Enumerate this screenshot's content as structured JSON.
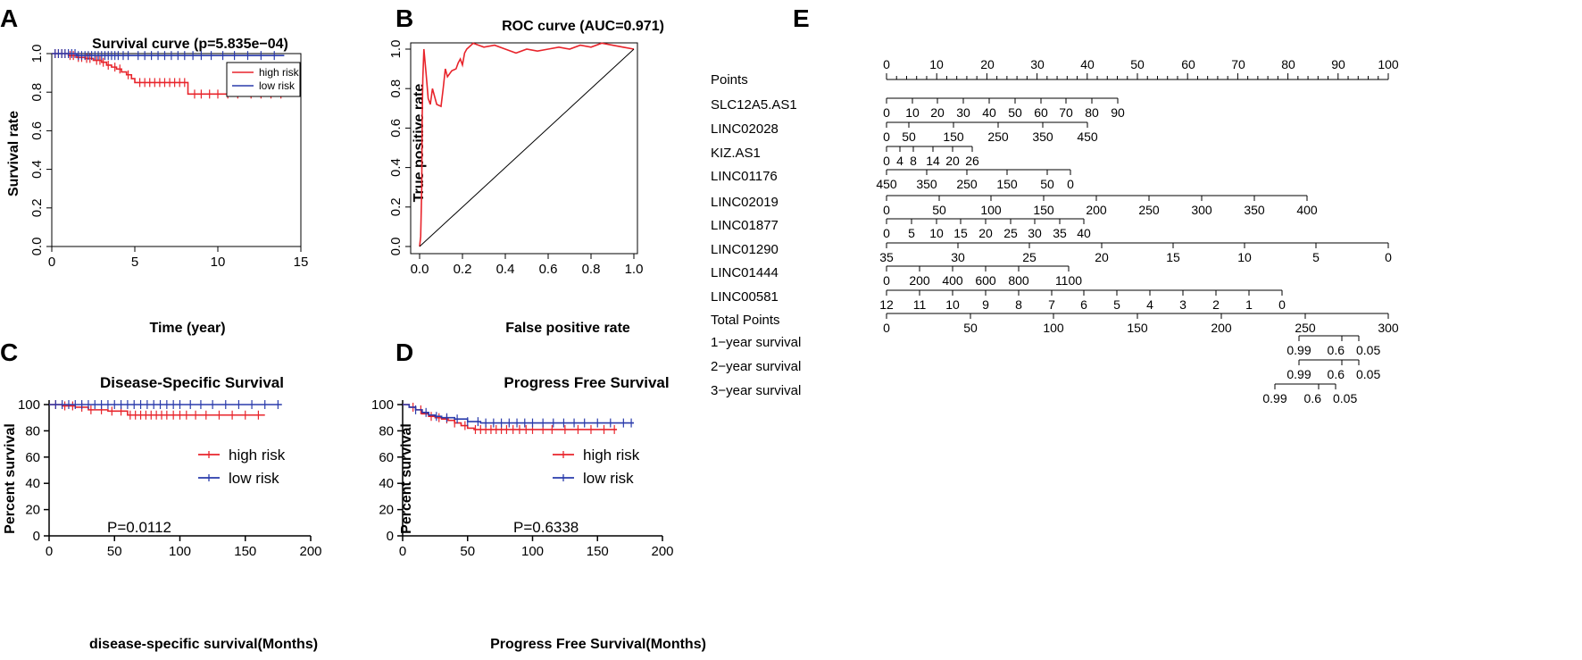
{
  "panels": {
    "A": {
      "letter": "A",
      "chart_data": {
        "type": "line",
        "title": "Survival curve (p=5.835e−04)",
        "xlabel": "Time (year)",
        "ylabel": "Survival rate",
        "xlim": [
          0,
          15
        ],
        "ylim": [
          0,
          1
        ],
        "xticks": [
          "0",
          "5",
          "10",
          "15"
        ],
        "yticks": [
          "0.0",
          "0.2",
          "0.4",
          "0.6",
          "0.8",
          "1.0"
        ],
        "legend_position": "top-right",
        "series": [
          {
            "name": "high risk",
            "color": "#e8242b",
            "steps": [
              [
                0,
                1.0
              ],
              [
                1.0,
                0.99
              ],
              [
                1.5,
                0.98
              ],
              [
                2.0,
                0.975
              ],
              [
                2.5,
                0.965
              ],
              [
                3.0,
                0.955
              ],
              [
                3.3,
                0.94
              ],
              [
                3.6,
                0.93
              ],
              [
                3.9,
                0.92
              ],
              [
                4.2,
                0.905
              ],
              [
                4.5,
                0.89
              ],
              [
                4.8,
                0.87
              ],
              [
                5.0,
                0.85
              ],
              [
                8.2,
                0.79
              ],
              [
                14.0,
                0.79
              ]
            ],
            "censor_times": [
              0.2,
              0.4,
              0.6,
              0.8,
              1.1,
              1.3,
              1.6,
              1.8,
              2.1,
              2.3,
              2.7,
              2.9,
              3.1,
              3.4,
              3.8,
              4.1,
              4.6,
              5.3,
              5.6,
              5.9,
              6.2,
              6.5,
              6.8,
              7.1,
              7.4,
              7.7,
              8.0,
              8.6,
              9.0,
              9.5,
              10.0,
              10.6,
              11.2,
              12.0,
              12.6,
              13.2,
              13.8
            ]
          },
          {
            "name": "low risk",
            "color": "#2a3bab",
            "steps": [
              [
                0,
                1.0
              ],
              [
                1.5,
                0.99
              ],
              [
                14.0,
                0.99
              ]
            ],
            "censor_times": [
              0.2,
              0.4,
              0.6,
              0.8,
              1.0,
              1.2,
              1.4,
              1.6,
              1.8,
              2.0,
              2.2,
              2.4,
              2.6,
              2.8,
              3.0,
              3.2,
              3.4,
              3.6,
              3.8,
              4.0,
              4.3,
              4.6,
              5.2,
              5.6,
              6.0,
              6.4,
              6.8,
              7.2,
              7.6,
              8.0,
              8.5,
              9.0,
              9.6,
              10.3,
              11.0,
              11.8,
              12.6,
              13.4
            ]
          }
        ]
      }
    },
    "B": {
      "letter": "B",
      "chart_data": {
        "type": "line",
        "title": "ROC curve (AUC=0.971)",
        "xlabel": "False positive rate",
        "ylabel": "True positive rate",
        "xlim": [
          0,
          1
        ],
        "ylim": [
          0,
          1
        ],
        "xticks": [
          "0.0",
          "0.2",
          "0.4",
          "0.6",
          "0.8",
          "1.0"
        ],
        "yticks": [
          "0.0",
          "0.2",
          "0.4",
          "0.6",
          "0.8",
          "1.0"
        ],
        "series": [
          {
            "name": "",
            "color": "#e8242b",
            "points": [
              [
                0,
                0
              ],
              [
                0.005,
                0.05
              ],
              [
                0.01,
                0.3
              ],
              [
                0.012,
                0.65
              ],
              [
                0.015,
                0.85
              ],
              [
                0.02,
                1.0
              ],
              [
                0.03,
                0.88
              ],
              [
                0.04,
                0.75
              ],
              [
                0.05,
                0.72
              ],
              [
                0.06,
                0.8
              ],
              [
                0.07,
                0.76
              ],
              [
                0.08,
                0.72
              ],
              [
                0.1,
                0.71
              ],
              [
                0.11,
                0.8
              ],
              [
                0.12,
                0.9
              ],
              [
                0.13,
                0.86
              ],
              [
                0.15,
                0.89
              ],
              [
                0.17,
                0.9
              ],
              [
                0.18,
                0.93
              ],
              [
                0.19,
                0.95
              ],
              [
                0.2,
                0.92
              ],
              [
                0.21,
                0.98
              ],
              [
                0.22,
                1.0
              ],
              [
                0.25,
                1.03
              ],
              [
                0.3,
                1.01
              ],
              [
                0.35,
                1.02
              ],
              [
                0.4,
                1.0
              ],
              [
                0.45,
                0.98
              ],
              [
                0.5,
                1.0
              ],
              [
                0.55,
                0.99
              ],
              [
                0.6,
                1.0
              ],
              [
                0.65,
                1.01
              ],
              [
                0.7,
                1.0
              ],
              [
                0.75,
                1.02
              ],
              [
                0.8,
                1.01
              ],
              [
                0.85,
                1.03
              ],
              [
                0.9,
                1.02
              ],
              [
                0.95,
                1.01
              ],
              [
                1.0,
                1.0
              ]
            ]
          },
          {
            "name": "",
            "color": "#000000",
            "points": [
              [
                0,
                0
              ],
              [
                1,
                1
              ]
            ]
          }
        ]
      }
    },
    "C": {
      "letter": "C",
      "pvalue": "P=0.0112",
      "chart_data": {
        "type": "line",
        "title": "Disease-Specific Survival",
        "xlabel": "disease-specific survival(Months)",
        "ylabel": "Percent survival",
        "xlim": [
          0,
          200
        ],
        "ylim": [
          0,
          100
        ],
        "xticks": [
          "0",
          "50",
          "100",
          "150",
          "200"
        ],
        "yticks": [
          "0",
          "20",
          "40",
          "60",
          "80",
          "100"
        ],
        "legend_position": "center-right",
        "series": [
          {
            "name": "high risk",
            "color": "#e8242b",
            "steps": [
              [
                0,
                100
              ],
              [
                10,
                99
              ],
              [
                20,
                98
              ],
              [
                30,
                96
              ],
              [
                45,
                95
              ],
              [
                60,
                92
              ],
              [
                165,
                92
              ]
            ],
            "censor_times": [
              5,
              12,
              18,
              25,
              32,
              40,
              48,
              55,
              62,
              66,
              70,
              74,
              78,
              82,
              86,
              90,
              95,
              100,
              105,
              112,
              120,
              130,
              140,
              150,
              160
            ]
          },
          {
            "name": "low risk",
            "color": "#2a3bab",
            "steps": [
              [
                0,
                100
              ],
              [
                178,
                100
              ]
            ],
            "censor_times": [
              5,
              10,
              15,
              20,
              25,
              30,
              35,
              40,
              45,
              50,
              55,
              60,
              65,
              70,
              75,
              80,
              85,
              90,
              95,
              100,
              108,
              116,
              125,
              135,
              145,
              155,
              165,
              175
            ]
          }
        ]
      }
    },
    "D": {
      "letter": "D",
      "pvalue": "P=0.6338",
      "chart_data": {
        "type": "line",
        "title": "Progress Free Survival",
        "xlabel": "Progress Free Survival(Months)",
        "ylabel": "Percent survival",
        "xlim": [
          0,
          200
        ],
        "ylim": [
          0,
          100
        ],
        "xticks": [
          "0",
          "50",
          "100",
          "150",
          "200"
        ],
        "yticks": [
          "0",
          "20",
          "40",
          "60",
          "80",
          "100"
        ],
        "legend_position": "center-right",
        "series": [
          {
            "name": "high risk",
            "color": "#e8242b",
            "steps": [
              [
                0,
                100
              ],
              [
                5,
                98
              ],
              [
                10,
                96
              ],
              [
                15,
                93
              ],
              [
                20,
                91
              ],
              [
                25,
                90
              ],
              [
                30,
                89
              ],
              [
                35,
                88
              ],
              [
                40,
                86
              ],
              [
                45,
                84
              ],
              [
                50,
                82
              ],
              [
                55,
                81
              ],
              [
                165,
                81
              ]
            ],
            "censor_times": [
              8,
              14,
              22,
              28,
              34,
              40,
              48,
              56,
              60,
              64,
              68,
              72,
              76,
              80,
              85,
              90,
              95,
              100,
              108,
              115,
              125,
              135,
              145,
              155,
              163
            ]
          },
          {
            "name": "low risk",
            "color": "#2a3bab",
            "steps": [
              [
                0,
                100
              ],
              [
                5,
                98
              ],
              [
                10,
                96
              ],
              [
                15,
                94
              ],
              [
                20,
                92
              ],
              [
                25,
                91
              ],
              [
                30,
                90
              ],
              [
                40,
                89
              ],
              [
                50,
                87
              ],
              [
                60,
                86
              ],
              [
                178,
                86
              ]
            ],
            "censor_times": [
              10,
              18,
              26,
              34,
              42,
              50,
              58,
              64,
              70,
              76,
              82,
              88,
              94,
              100,
              108,
              116,
              124,
              132,
              140,
              150,
              160,
              170,
              176
            ]
          }
        ]
      }
    },
    "E": {
      "letter": "E",
      "chart_data": {
        "type": "table",
        "title": "",
        "rows": [
          {
            "label": "Points",
            "ticks": [
              "0",
              "10",
              "20",
              "30",
              "40",
              "50",
              "60",
              "70",
              "80",
              "90",
              "100"
            ],
            "labels_above": true
          },
          {
            "label": "SLC12A5.AS1",
            "ticks": [
              "0",
              "10",
              "20",
              "30",
              "40",
              "50",
              "60",
              "70",
              "80",
              "90"
            ]
          },
          {
            "label": "LINC02028",
            "ticks": [
              "0",
              "50",
              "150",
              "250",
              "350",
              "450"
            ]
          },
          {
            "label": "KIZ.AS1",
            "ticks": [
              "0",
              "4",
              "8",
              "14",
              "20",
              "26"
            ]
          },
          {
            "label": "LINC01176",
            "ticks": [
              "450",
              "350",
              "250",
              "150",
              "50",
              "0"
            ]
          },
          {
            "label": "LINC02019",
            "ticks": [
              "0",
              "50",
              "100",
              "150",
              "200",
              "250",
              "300",
              "350",
              "400"
            ]
          },
          {
            "label": "LINC01877",
            "ticks": [
              "0",
              "5",
              "10",
              "15",
              "20",
              "25",
              "30",
              "35",
              "40"
            ]
          },
          {
            "label": "LINC01290",
            "ticks": [
              "35",
              "30",
              "25",
              "20",
              "15",
              "10",
              "5",
              "0"
            ]
          },
          {
            "label": "LINC01444",
            "ticks": [
              "0",
              "200",
              "400",
              "600",
              "800",
              "1100"
            ]
          },
          {
            "label": "LINC00581",
            "ticks": [
              "12",
              "11",
              "10",
              "9",
              "8",
              "7",
              "6",
              "5",
              "4",
              "3",
              "2",
              "1",
              "0"
            ]
          },
          {
            "label": "Total Points",
            "ticks": [
              "0",
              "50",
              "100",
              "150",
              "200",
              "250",
              "300"
            ]
          },
          {
            "label": "1−year survival",
            "ticks": [
              "0.99",
              "0.6",
              "0.05"
            ]
          },
          {
            "label": "2−year survival",
            "ticks": [
              "0.99",
              "0.6",
              "0.05"
            ]
          },
          {
            "label": "3−year survival",
            "ticks": [
              "0.99",
              "0.6",
              "0.05"
            ]
          }
        ]
      }
    }
  }
}
